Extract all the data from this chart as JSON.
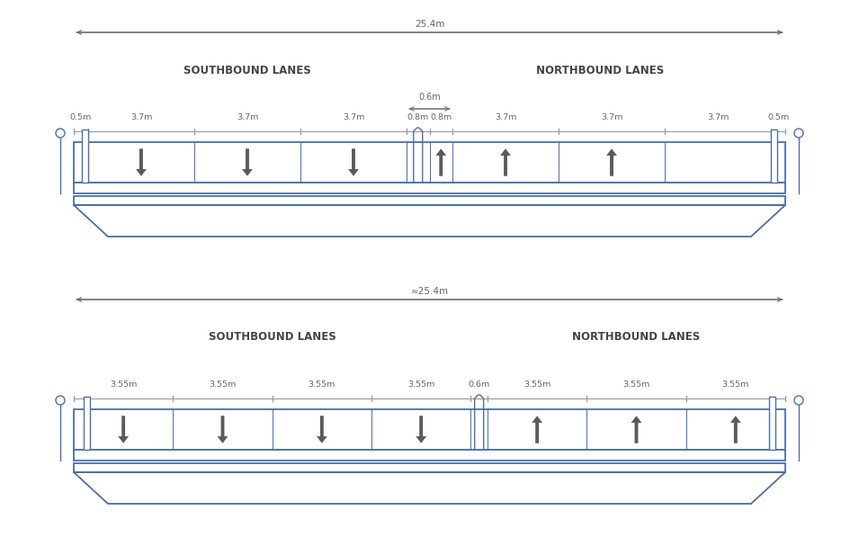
{
  "bg_color": "#ffffff",
  "blue": "#4a6faa",
  "arrow_color": "#5a5a5a",
  "dim_color": "#666666",
  "top": {
    "total_label": "25.4m",
    "southbound_label": "SOUTHBOUND LANES",
    "northbound_label": "NORTHBOUND LANES",
    "center_label": "0.6m",
    "segments": [
      "0.5m",
      "3.7m",
      "3.7m",
      "3.7m",
      "0.8m",
      "0.8m",
      "3.7m",
      "3.7m",
      "3.7m",
      "0.5m"
    ],
    "seg_widths": [
      0.5,
      3.7,
      3.7,
      3.7,
      0.8,
      0.8,
      3.7,
      3.7,
      3.7,
      0.5
    ],
    "down_lane_indices": [
      1,
      2,
      3
    ],
    "up_lane_indices": [
      5,
      6,
      7
    ],
    "sb_seg_range": [
      1,
      4
    ],
    "nb_seg_range": [
      5,
      9
    ]
  },
  "bottom": {
    "total_label": "≈25.4m",
    "southbound_label": "SOUTHBOUND LANES",
    "northbound_label": "NORTHBOUND LANES",
    "segments": [
      "3.55m",
      "3.55m",
      "3.55m",
      "3.55m",
      "0.6m",
      "3.55m",
      "3.55m",
      "3.55m"
    ],
    "seg_widths": [
      3.55,
      3.55,
      3.55,
      3.55,
      0.6,
      3.55,
      3.55,
      3.55
    ],
    "down_lane_indices": [
      0,
      1,
      2,
      3
    ],
    "up_lane_indices": [
      5,
      6,
      7
    ],
    "sb_seg_range": [
      0,
      4
    ],
    "nb_seg_range": [
      5,
      8
    ]
  }
}
